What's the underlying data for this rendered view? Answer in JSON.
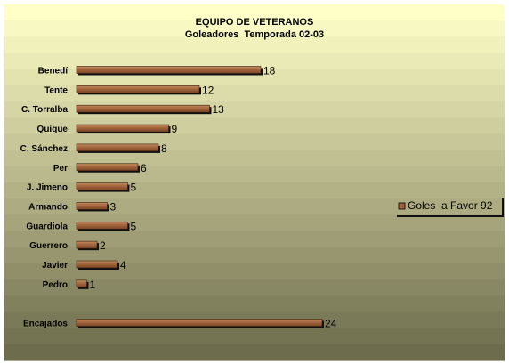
{
  "chart_data": {
    "type": "bar",
    "orientation": "horizontal",
    "title": "EQUIPO DE VETERANOS",
    "subtitle": "Goleadores  Temporada 02-03",
    "categories": [
      "Benedí",
      "Tente",
      "C. Torralba",
      "Quique",
      "C. Sánchez",
      "Per",
      "J. Jimeno",
      "Armando",
      "Guardiola",
      "Guerrero",
      "Javier",
      "Pedro",
      "",
      "Encajados"
    ],
    "series": [
      {
        "name": "Goles  a Favor 92",
        "values": [
          18,
          12,
          13,
          9,
          8,
          6,
          5,
          3,
          5,
          2,
          4,
          1,
          null,
          24
        ]
      }
    ],
    "data_labels": [
      "18",
      "12",
      "13",
      "9",
      "8",
      "6",
      "5",
      "3",
      "5",
      "2",
      "4",
      "1",
      "",
      "24"
    ],
    "xlim": [
      0,
      24
    ],
    "legend_position": "right",
    "grid": false,
    "colors": {
      "bar": "#a0623a",
      "bar_light": "#c28a5e",
      "bar_shadow": "#101010",
      "bg_top": "#ffffc8",
      "bg_bottom": "#6d6c4c"
    }
  }
}
